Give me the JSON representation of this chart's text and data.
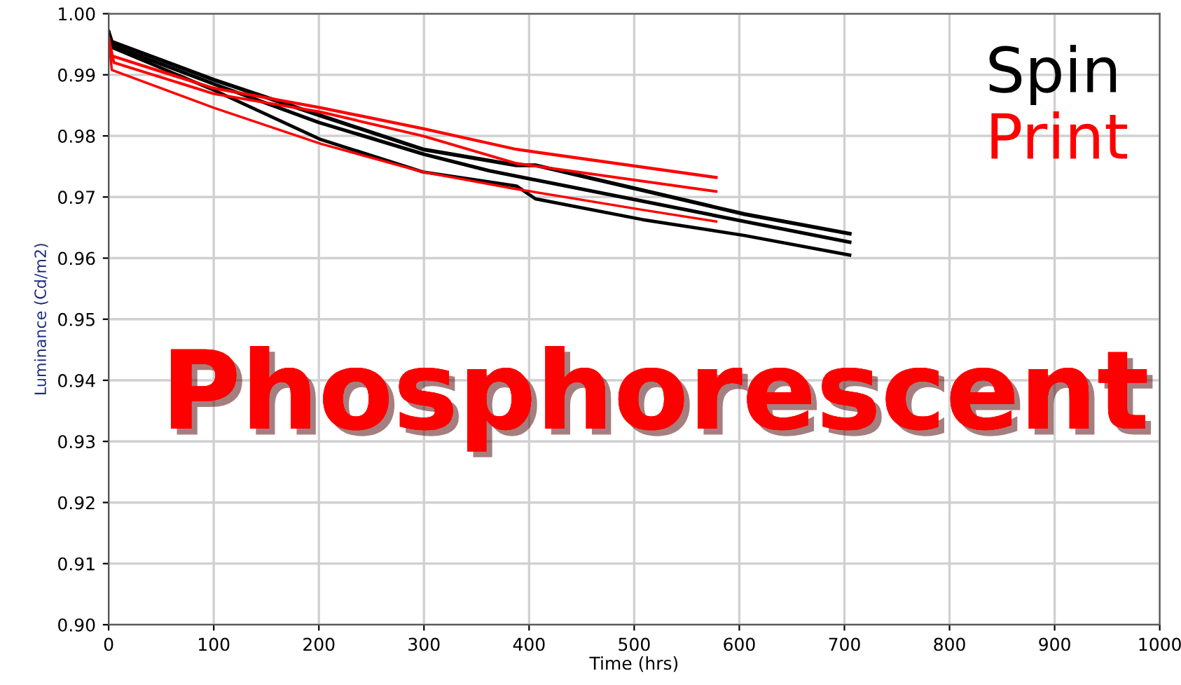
{
  "chart_data": {
    "type": "line",
    "xlabel": "Time (hrs)",
    "ylabel": "Luminance (Cd/m2)",
    "xlim": [
      0,
      1000
    ],
    "xticks": [
      0,
      100,
      200,
      300,
      400,
      500,
      600,
      700,
      800,
      900,
      1000
    ],
    "ylim": [
      0.9,
      1.0
    ],
    "yticks": [
      {
        "value": 0.9,
        "label": "0.90"
      },
      0.91,
      0.92,
      0.93,
      0.94,
      0.95,
      0.96,
      0.97,
      0.98,
      0.99,
      {
        "value": 1.0,
        "label": "1.00"
      }
    ],
    "grid": true,
    "legend": "top right",
    "marker": "none",
    "line_style": "solid",
    "annotations": [
      "Phosphorescent"
    ],
    "series": [
      {
        "name": "Spin",
        "color": "#000000",
        "x": [
          0,
          3,
          100,
          202,
          299,
          388,
          406,
          605,
          705
        ],
        "values": [
          0.997,
          0.9954,
          0.9892,
          0.9833,
          0.9778,
          0.9752,
          0.9752,
          0.9672,
          0.964
        ]
      },
      {
        "color": "#000000",
        "x": [
          0,
          3,
          100,
          200,
          300,
          362,
          605,
          705
        ],
        "values": [
          0.997,
          0.9948,
          0.9885,
          0.9822,
          0.977,
          0.9743,
          0.966,
          0.9626
        ]
      },
      {
        "color": "#000000",
        "x": [
          0,
          3,
          100,
          202,
          299,
          388,
          406,
          508,
          605,
          705
        ],
        "values": [
          0.997,
          0.9945,
          0.9875,
          0.9794,
          0.9741,
          0.9718,
          0.9697,
          0.9663,
          0.9637,
          0.9605
        ]
      },
      {
        "name": "Print",
        "color": "#ff0000",
        "x": [
          0,
          3,
          100,
          202,
          299,
          388,
          578
        ],
        "values": [
          0.996,
          0.9931,
          0.9878,
          0.9846,
          0.9812,
          0.9778,
          0.9732
        ]
      },
      {
        "color": "#ff0000",
        "x": [
          0,
          5,
          100,
          202,
          299,
          388,
          578
        ],
        "values": [
          0.996,
          0.992,
          0.9869,
          0.9839,
          0.98,
          0.9755,
          0.9709
        ]
      },
      {
        "color": "#ff0000",
        "x": [
          0,
          3,
          100,
          202,
          299,
          388,
          508,
          578
        ],
        "values": [
          0.996,
          0.9908,
          0.9846,
          0.9787,
          0.9741,
          0.9713,
          0.9679,
          0.966
        ]
      }
    ]
  }
}
